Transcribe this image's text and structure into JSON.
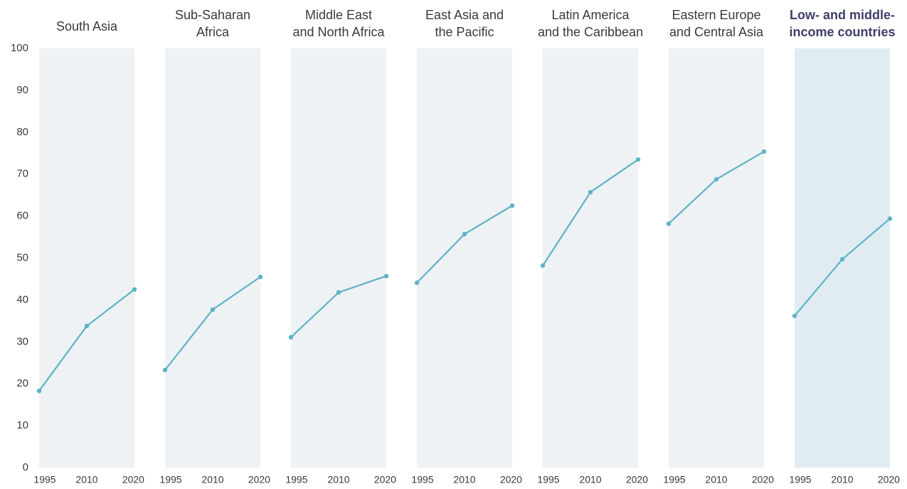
{
  "chart_data": {
    "type": "line",
    "categories": [
      "1995",
      "2010",
      "2020"
    ],
    "ylim": [
      0,
      100
    ],
    "yticks": [
      0,
      10,
      20,
      30,
      40,
      50,
      60,
      70,
      80,
      90,
      100
    ],
    "color": "#5fb3c4",
    "panels": [
      {
        "name": [
          "South Asia"
        ],
        "values": [
          18.3,
          33.8,
          42.5
        ],
        "background": "#eef2f5",
        "bold": false
      },
      {
        "name": [
          "Sub-Saharan",
          "Africa"
        ],
        "values": [
          23.3,
          37.7,
          45.5
        ],
        "background": "#eef2f5",
        "bold": false
      },
      {
        "name": [
          "Middle East",
          "and North Africa"
        ],
        "values": [
          31.1,
          41.8,
          45.7
        ],
        "background": "#eef2f5",
        "bold": false
      },
      {
        "name": [
          "East Asia and",
          "the Pacific"
        ],
        "values": [
          44.1,
          55.7,
          62.5
        ],
        "background": "#eef2f5",
        "bold": false
      },
      {
        "name": [
          "Latin America",
          "and the Caribbean"
        ],
        "values": [
          48.2,
          65.7,
          73.5
        ],
        "background": "#eef2f5",
        "bold": false
      },
      {
        "name": [
          "Eastern Europe",
          "and Central Asia"
        ],
        "values": [
          58.2,
          68.8,
          75.4
        ],
        "background": "#eef2f5",
        "bold": false
      },
      {
        "name": [
          "Low- and middle-",
          "income countries"
        ],
        "values": [
          36.2,
          49.7,
          59.4
        ],
        "background": "#e1ecf2",
        "bold": true
      }
    ]
  }
}
